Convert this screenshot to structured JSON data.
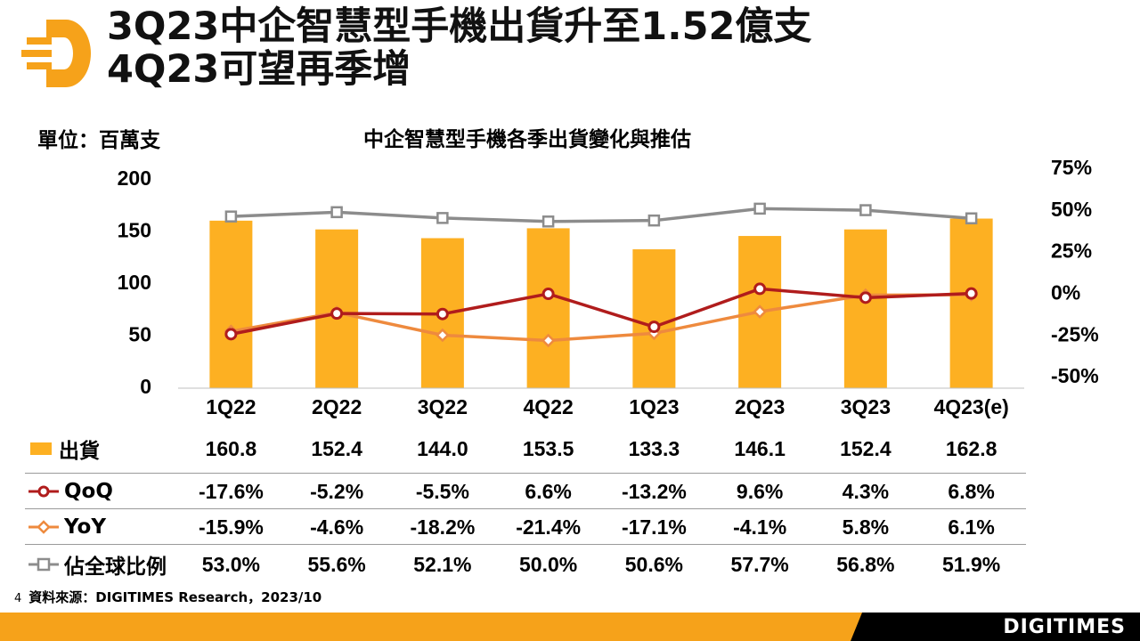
{
  "header": {
    "title_line1": "3Q23中企智慧型手機出貨升至1.52億支",
    "title_line2": "4Q23可望再季增"
  },
  "unit_label": "單位：百萬支",
  "colors": {
    "shipments": "#FDB022",
    "qoq": "#B01C1C",
    "yoy": "#EE8A3E",
    "share": "#8C8C8C",
    "brand_orange": "#F6A21A"
  },
  "chart_data": {
    "type": "bar",
    "title": "中企智慧型手機各季出貨變化與推估",
    "categories": [
      "1Q22",
      "2Q22",
      "3Q22",
      "4Q22",
      "1Q23",
      "2Q23",
      "3Q23",
      "4Q23(e)"
    ],
    "ylim": [
      0,
      200
    ],
    "y_ticks": [
      "0",
      "50",
      "100",
      "150",
      "200"
    ],
    "y2lim": [
      -50,
      75
    ],
    "y2_ticks": [
      "-50%",
      "-25%",
      "0%",
      "25%",
      "50%",
      "75%"
    ],
    "series": [
      {
        "name": "出貨",
        "type": "bar",
        "axis": "left",
        "values": [
          160.8,
          152.4,
          144.0,
          153.5,
          133.3,
          146.1,
          152.4,
          162.8
        ],
        "labels": [
          "160.8",
          "152.4",
          "144.0",
          "153.5",
          "133.3",
          "146.1",
          "152.4",
          "162.8"
        ]
      },
      {
        "name": "QoQ",
        "type": "line",
        "axis": "right",
        "values": [
          -17.6,
          -5.2,
          -5.5,
          6.6,
          -13.2,
          9.6,
          4.3,
          6.8
        ],
        "labels": [
          "-17.6%",
          "-5.2%",
          "-5.5%",
          "6.6%",
          "-13.2%",
          "9.6%",
          "4.3%",
          "6.8%"
        ]
      },
      {
        "name": "YoY",
        "type": "line",
        "axis": "right",
        "values": [
          -15.9,
          -4.6,
          -18.2,
          -21.4,
          -17.1,
          -4.1,
          5.8,
          6.1
        ],
        "labels": [
          "-15.9%",
          "-4.6%",
          "-18.2%",
          "-21.4%",
          "-17.1%",
          "-4.1%",
          "5.8%",
          "6.1%"
        ]
      },
      {
        "name": "佔全球比例",
        "type": "line",
        "axis": "right",
        "values": [
          53.0,
          55.6,
          52.1,
          50.0,
          50.6,
          57.7,
          56.8,
          51.9
        ],
        "labels": [
          "53.0%",
          "55.6%",
          "52.1%",
          "50.0%",
          "50.6%",
          "57.7%",
          "56.8%",
          "51.9%"
        ]
      }
    ]
  },
  "footer": {
    "page_number": "4",
    "source": "資料來源：DIGITIMES Research，2023/10",
    "logo_text": "DIGITIMES"
  }
}
